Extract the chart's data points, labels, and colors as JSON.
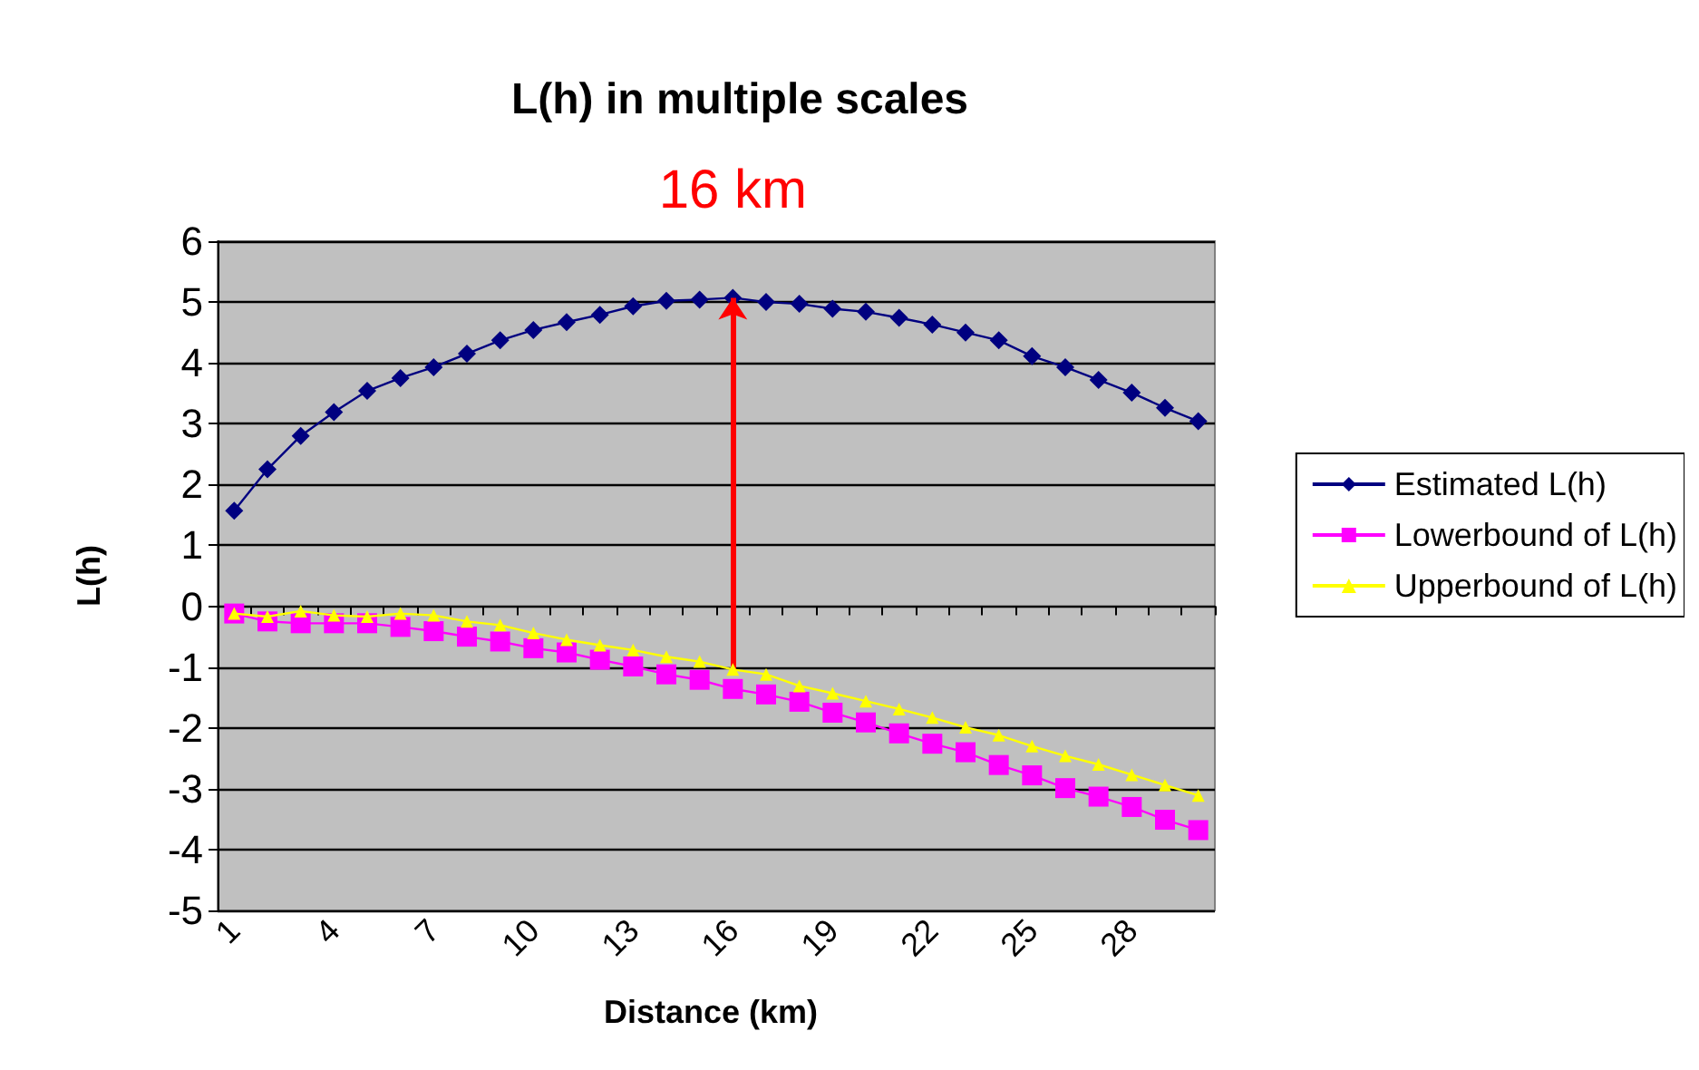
{
  "chart_data": {
    "type": "line",
    "title": "L(h) in multiple scales",
    "xlabel": "Distance (km)",
    "ylabel": "L(h)",
    "categories": [
      "1",
      null,
      null,
      "4",
      null,
      null,
      "7",
      null,
      null,
      "10",
      null,
      null,
      "13",
      null,
      null,
      "16",
      null,
      null,
      "19",
      null,
      null,
      "22",
      null,
      null,
      "25",
      null,
      null,
      "28",
      null,
      null
    ],
    "series": [
      {
        "name": "Estimated L(h)",
        "color": "#000080",
        "marker": "diamond",
        "values": [
          1.57,
          2.25,
          2.8,
          3.19,
          3.54,
          3.75,
          3.93,
          4.15,
          4.37,
          4.54,
          4.67,
          4.79,
          4.93,
          5.02,
          5.04,
          5.07,
          5.0,
          4.97,
          4.89,
          4.84,
          4.74,
          4.63,
          4.5,
          4.37,
          4.11,
          3.93,
          3.72,
          3.51,
          3.26,
          3.04
        ]
      },
      {
        "name": "Lowerbound of L(h)",
        "color": "#ff00ff",
        "marker": "square",
        "values": [
          -0.12,
          -0.25,
          -0.28,
          -0.28,
          -0.28,
          -0.34,
          -0.41,
          -0.5,
          -0.58,
          -0.69,
          -0.76,
          -0.88,
          -0.99,
          -1.12,
          -1.21,
          -1.36,
          -1.45,
          -1.57,
          -1.75,
          -1.91,
          -2.09,
          -2.26,
          -2.4,
          -2.61,
          -2.78,
          -2.99,
          -3.13,
          -3.3,
          -3.51,
          -3.68
        ]
      },
      {
        "name": "Upperbound of L(h)",
        "color": "#ffff00",
        "marker": "triangle",
        "values": [
          -0.12,
          -0.17,
          -0.08,
          -0.15,
          -0.17,
          -0.12,
          -0.15,
          -0.25,
          -0.31,
          -0.44,
          -0.55,
          -0.64,
          -0.72,
          -0.83,
          -0.91,
          -1.04,
          -1.12,
          -1.31,
          -1.43,
          -1.56,
          -1.69,
          -1.83,
          -1.99,
          -2.12,
          -2.3,
          -2.46,
          -2.6,
          -2.77,
          -2.94,
          -3.11
        ]
      }
    ],
    "annotations": [
      {
        "text": "16 km",
        "x": "16",
        "y": 5.07
      }
    ],
    "ylim": [
      -5,
      6
    ],
    "yticks": [
      -5,
      -4,
      -3,
      -2,
      -1,
      0,
      1,
      2,
      3,
      4,
      5,
      6
    ],
    "grid": "y",
    "legend": "right"
  }
}
